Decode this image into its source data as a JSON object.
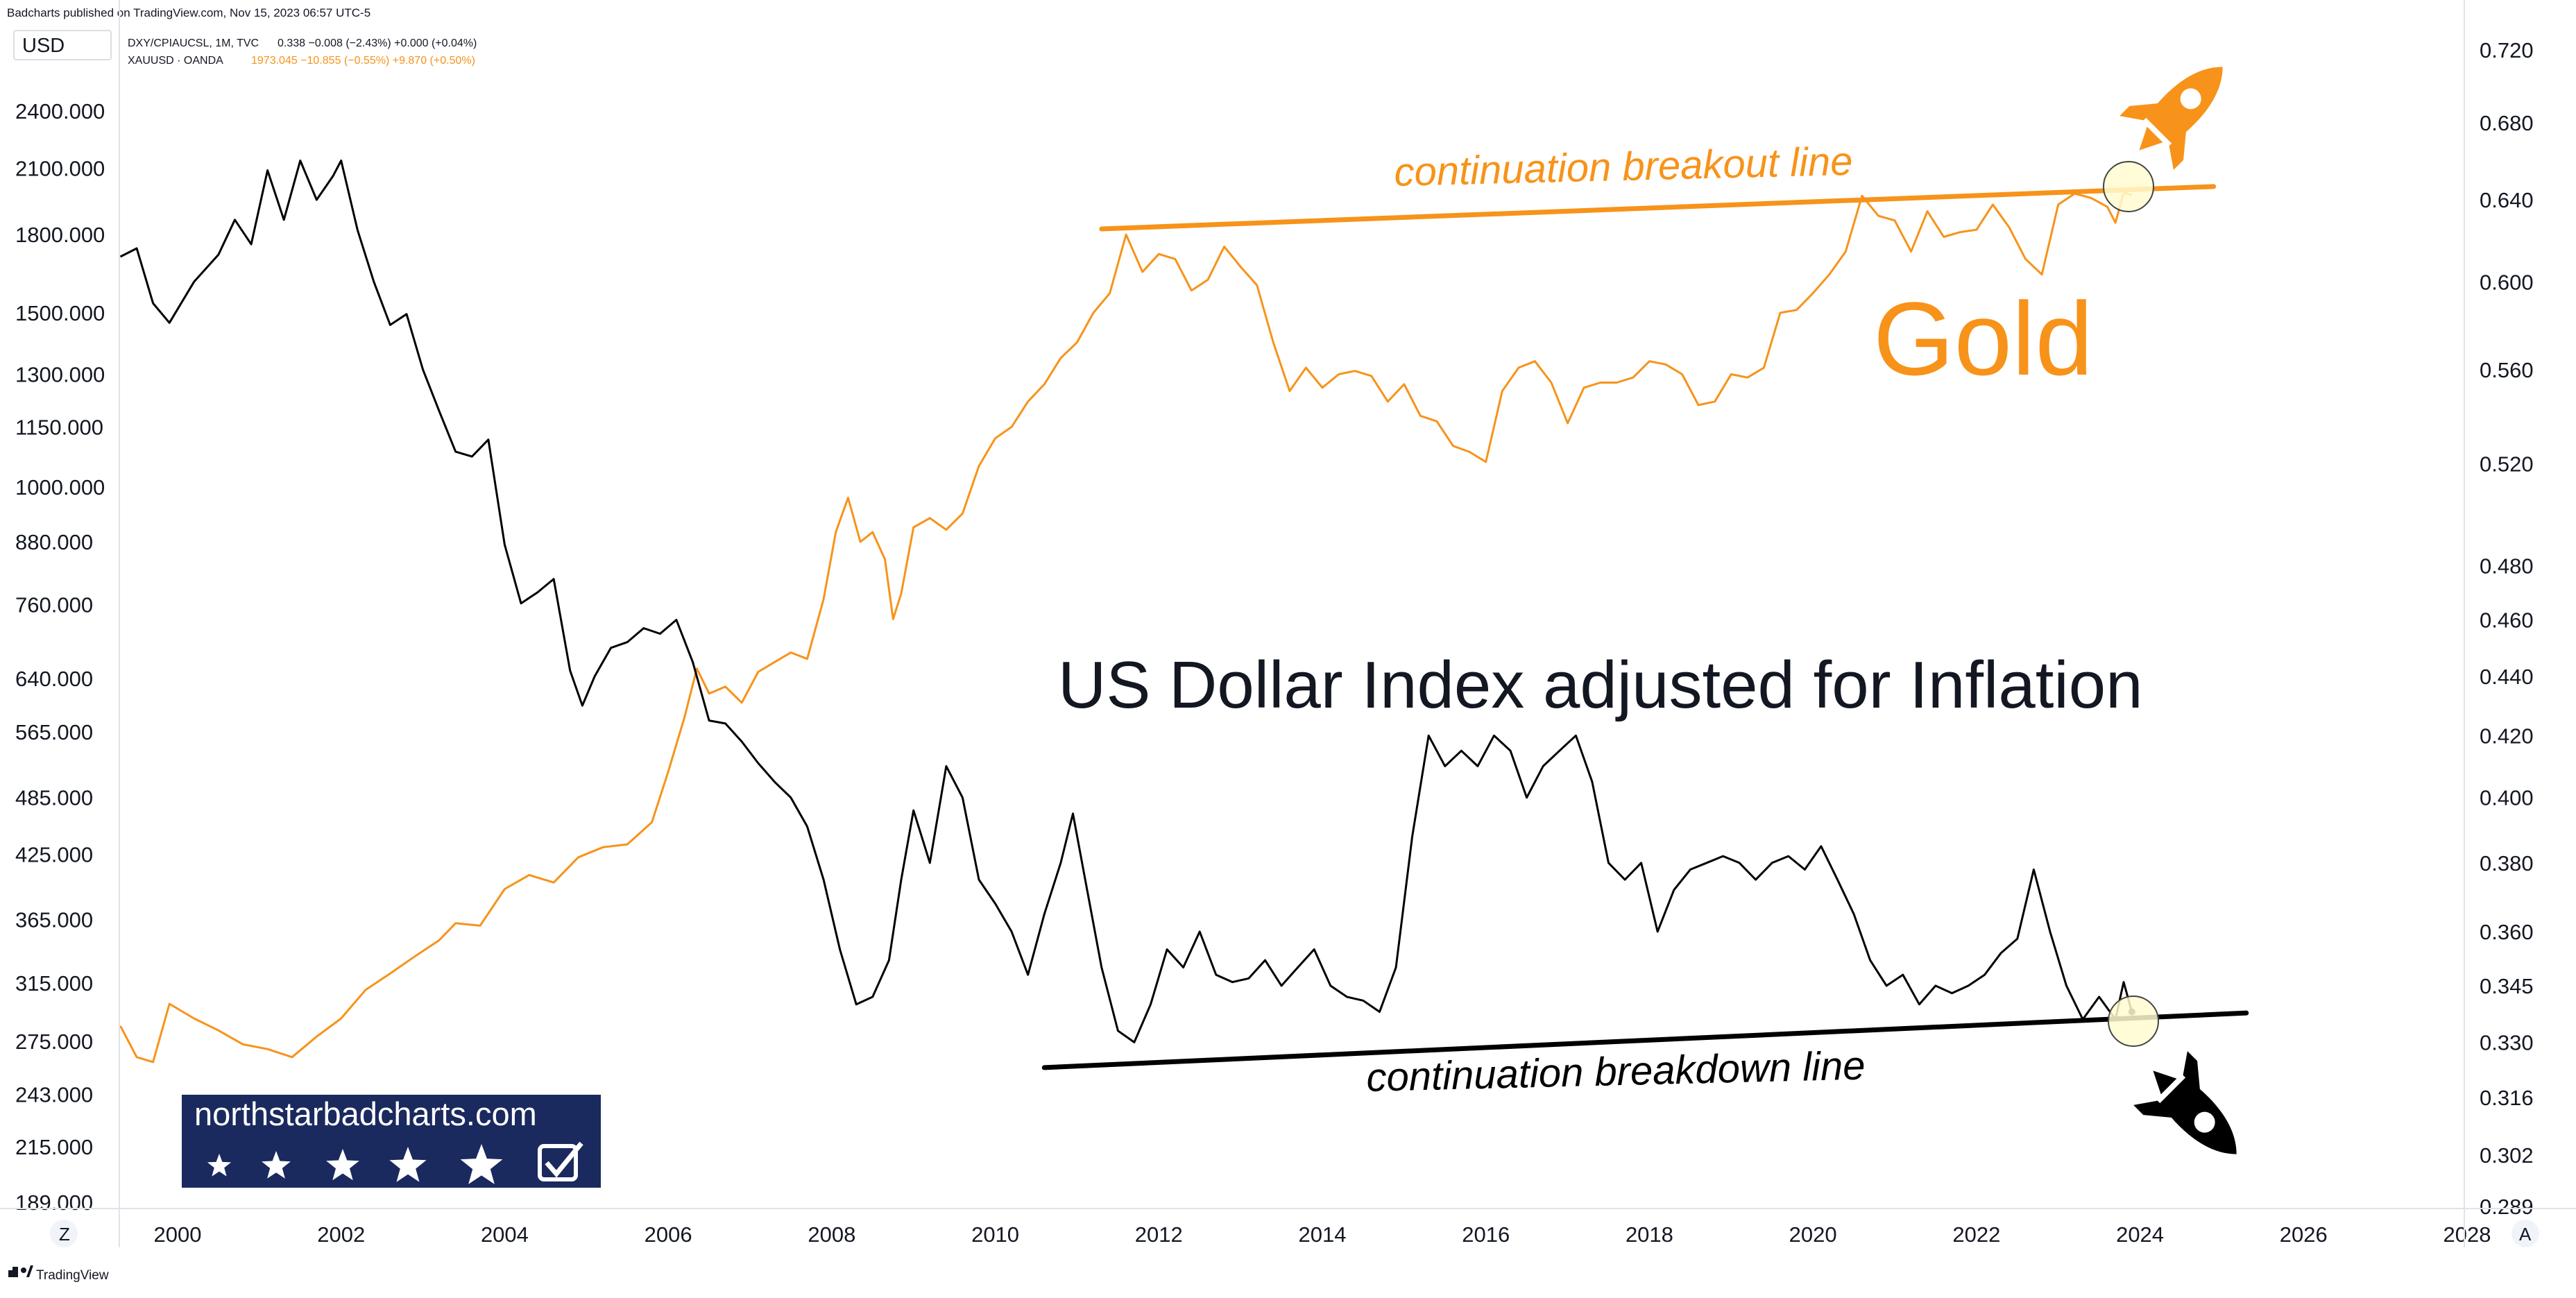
{
  "header": {
    "published": "Badcharts published on TradingView.com, Nov 15, 2023 06:57 UTC-5",
    "currency": "USD"
  },
  "legend": [
    {
      "symbol": "DXY/CPIAUCSL, 1M, TVC",
      "values": "0.338  −0.008 (−2.43%)  +0.000 (+0.04%)",
      "color": "#131722"
    },
    {
      "symbol": "XAUUSD · OANDA",
      "values": "1973.045  −10.855 (−0.55%)  +9.870 (+0.50%)",
      "color": "#f7931a"
    }
  ],
  "footer": {
    "brand": "TradingView",
    "zoom_button": "Z",
    "auto_button": "A"
  },
  "watermark": {
    "site": "northstarbadcharts.com",
    "star_count": 5
  },
  "colors": {
    "gold": "#f7931a",
    "dollar": "#000000",
    "watermark_bg": "#1a2a5e",
    "highlight": "#fffbd0"
  },
  "icons": [
    "rocket-up-icon",
    "rocket-down-icon",
    "checkbox-icon",
    "tradingview-logo-icon"
  ],
  "chart_data": {
    "type": "line",
    "title": "US Dollar Index adjusted for Inflation",
    "x_ticks": [
      "2000",
      "2002",
      "2004",
      "2006",
      "2008",
      "2010",
      "2012",
      "2014",
      "2016",
      "2018",
      "2020",
      "2022",
      "2024",
      "2026",
      "2028"
    ],
    "left_axis": {
      "scale": "log",
      "ticks": [
        "2400.000",
        "2100.000",
        "1800.000",
        "1500.000",
        "1300.000",
        "1150.000",
        "1000.000",
        "880.000",
        "760.000",
        "640.000",
        "565.000",
        "485.000",
        "425.000",
        "365.000",
        "315.000",
        "275.000",
        "243.000",
        "215.000",
        "189.000"
      ]
    },
    "right_axis": {
      "scale": "log",
      "ticks": [
        "0.720",
        "0.680",
        "0.640",
        "0.600",
        "0.560",
        "0.520",
        "0.480",
        "0.460",
        "0.440",
        "0.420",
        "0.400",
        "0.380",
        "0.360",
        "0.345",
        "0.330",
        "0.316",
        "0.302",
        "0.289"
      ]
    },
    "annotations": [
      {
        "text": "continuation breakout line",
        "color": "#f7931a"
      },
      {
        "text": "Gold",
        "color": "#f7931a"
      },
      {
        "text": "continuation breakdown line",
        "color": "#000000"
      }
    ],
    "trend_lines": [
      {
        "name": "continuation breakout line",
        "axis": "right",
        "color": "#f7931a",
        "start": [
          2011.3,
          0.6255
        ],
        "end": [
          2024.9,
          0.6467
        ]
      },
      {
        "name": "continuation breakdown line",
        "axis": "right",
        "color": "#000000",
        "start": [
          2010.6,
          0.3235
        ],
        "end": [
          2025.3,
          0.3377
        ]
      }
    ],
    "series": [
      {
        "axis": "left",
        "color": "#f7931a",
        "points": [
          [
            1999.3,
            285
          ],
          [
            1999.5,
            265
          ],
          [
            1999.7,
            262
          ],
          [
            1999.9,
            300
          ],
          [
            2000.2,
            290
          ],
          [
            2000.5,
            282
          ],
          [
            2000.8,
            273
          ],
          [
            2001.1,
            270
          ],
          [
            2001.4,
            265
          ],
          [
            2001.7,
            278
          ],
          [
            2002.0,
            290
          ],
          [
            2002.3,
            310
          ],
          [
            2002.6,
            322
          ],
          [
            2002.9,
            335
          ],
          [
            2003.2,
            348
          ],
          [
            2003.4,
            362
          ],
          [
            2003.7,
            360
          ],
          [
            2004.0,
            392
          ],
          [
            2004.3,
            405
          ],
          [
            2004.6,
            398
          ],
          [
            2004.9,
            422
          ],
          [
            2005.2,
            432
          ],
          [
            2005.5,
            435
          ],
          [
            2005.8,
            458
          ],
          [
            2006.0,
            515
          ],
          [
            2006.2,
            585
          ],
          [
            2006.35,
            655
          ],
          [
            2006.5,
            618
          ],
          [
            2006.7,
            628
          ],
          [
            2006.9,
            605
          ],
          [
            2007.1,
            650
          ],
          [
            2007.3,
            665
          ],
          [
            2007.5,
            680
          ],
          [
            2007.7,
            670
          ],
          [
            2007.9,
            770
          ],
          [
            2008.05,
            900
          ],
          [
            2008.2,
            975
          ],
          [
            2008.35,
            880
          ],
          [
            2008.5,
            900
          ],
          [
            2008.65,
            845
          ],
          [
            2008.75,
            735
          ],
          [
            2008.85,
            780
          ],
          [
            2009.0,
            910
          ],
          [
            2009.2,
            930
          ],
          [
            2009.4,
            905
          ],
          [
            2009.6,
            940
          ],
          [
            2009.8,
            1050
          ],
          [
            2010.0,
            1120
          ],
          [
            2010.2,
            1150
          ],
          [
            2010.4,
            1220
          ],
          [
            2010.6,
            1270
          ],
          [
            2010.8,
            1350
          ],
          [
            2011.0,
            1400
          ],
          [
            2011.2,
            1500
          ],
          [
            2011.4,
            1570
          ],
          [
            2011.6,
            1800
          ],
          [
            2011.8,
            1650
          ],
          [
            2012.0,
            1720
          ],
          [
            2012.2,
            1700
          ],
          [
            2012.4,
            1580
          ],
          [
            2012.6,
            1620
          ],
          [
            2012.8,
            1750
          ],
          [
            2013.0,
            1670
          ],
          [
            2013.2,
            1600
          ],
          [
            2013.4,
            1400
          ],
          [
            2013.6,
            1250
          ],
          [
            2013.8,
            1320
          ],
          [
            2014.0,
            1260
          ],
          [
            2014.2,
            1300
          ],
          [
            2014.4,
            1310
          ],
          [
            2014.6,
            1295
          ],
          [
            2014.8,
            1220
          ],
          [
            2015.0,
            1270
          ],
          [
            2015.2,
            1180
          ],
          [
            2015.4,
            1165
          ],
          [
            2015.6,
            1100
          ],
          [
            2015.8,
            1085
          ],
          [
            2016.0,
            1060
          ],
          [
            2016.2,
            1250
          ],
          [
            2016.4,
            1320
          ],
          [
            2016.6,
            1340
          ],
          [
            2016.8,
            1275
          ],
          [
            2017.0,
            1160
          ],
          [
            2017.2,
            1260
          ],
          [
            2017.4,
            1275
          ],
          [
            2017.6,
            1275
          ],
          [
            2017.8,
            1290
          ],
          [
            2018.0,
            1340
          ],
          [
            2018.2,
            1330
          ],
          [
            2018.4,
            1300
          ],
          [
            2018.6,
            1210
          ],
          [
            2018.8,
            1220
          ],
          [
            2019.0,
            1300
          ],
          [
            2019.2,
            1290
          ],
          [
            2019.4,
            1320
          ],
          [
            2019.6,
            1500
          ],
          [
            2019.8,
            1510
          ],
          [
            2020.0,
            1570
          ],
          [
            2020.2,
            1640
          ],
          [
            2020.4,
            1730
          ],
          [
            2020.6,
            1970
          ],
          [
            2020.8,
            1880
          ],
          [
            2021.0,
            1860
          ],
          [
            2021.2,
            1730
          ],
          [
            2021.4,
            1900
          ],
          [
            2021.6,
            1790
          ],
          [
            2021.8,
            1810
          ],
          [
            2022.0,
            1820
          ],
          [
            2022.2,
            1930
          ],
          [
            2022.4,
            1830
          ],
          [
            2022.6,
            1700
          ],
          [
            2022.8,
            1640
          ],
          [
            2023.0,
            1930
          ],
          [
            2023.2,
            1980
          ],
          [
            2023.4,
            1960
          ],
          [
            2023.6,
            1920
          ],
          [
            2023.7,
            1850
          ],
          [
            2023.8,
            1985
          ],
          [
            2023.9,
            1973
          ]
        ]
      },
      {
        "axis": "right",
        "color": "#000000",
        "points": [
          [
            1999.3,
            0.612
          ],
          [
            1999.5,
            0.616
          ],
          [
            1999.7,
            0.59
          ],
          [
            1999.9,
            0.581
          ],
          [
            2000.2,
            0.6
          ],
          [
            2000.5,
            0.613
          ],
          [
            2000.7,
            0.63
          ],
          [
            2000.9,
            0.618
          ],
          [
            2001.1,
            0.655
          ],
          [
            2001.3,
            0.63
          ],
          [
            2001.5,
            0.66
          ],
          [
            2001.7,
            0.64
          ],
          [
            2001.9,
            0.652
          ],
          [
            2002.0,
            0.66
          ],
          [
            2002.2,
            0.625
          ],
          [
            2002.4,
            0.6
          ],
          [
            2002.6,
            0.58
          ],
          [
            2002.8,
            0.585
          ],
          [
            2003.0,
            0.56
          ],
          [
            2003.2,
            0.542
          ],
          [
            2003.4,
            0.525
          ],
          [
            2003.6,
            0.523
          ],
          [
            2003.8,
            0.53
          ],
          [
            2004.0,
            0.488
          ],
          [
            2004.2,
            0.466
          ],
          [
            2004.4,
            0.47
          ],
          [
            2004.6,
            0.475
          ],
          [
            2004.8,
            0.442
          ],
          [
            2004.95,
            0.43
          ],
          [
            2005.1,
            0.44
          ],
          [
            2005.3,
            0.45
          ],
          [
            2005.5,
            0.452
          ],
          [
            2005.7,
            0.457
          ],
          [
            2005.9,
            0.455
          ],
          [
            2006.1,
            0.46
          ],
          [
            2006.3,
            0.445
          ],
          [
            2006.5,
            0.425
          ],
          [
            2006.7,
            0.424
          ],
          [
            2006.9,
            0.418
          ],
          [
            2007.1,
            0.411
          ],
          [
            2007.3,
            0.405
          ],
          [
            2007.5,
            0.4
          ],
          [
            2007.7,
            0.391
          ],
          [
            2007.9,
            0.375
          ],
          [
            2008.1,
            0.355
          ],
          [
            2008.3,
            0.34
          ],
          [
            2008.5,
            0.342
          ],
          [
            2008.7,
            0.352
          ],
          [
            2008.85,
            0.375
          ],
          [
            2009.0,
            0.396
          ],
          [
            2009.2,
            0.38
          ],
          [
            2009.4,
            0.41
          ],
          [
            2009.6,
            0.4
          ],
          [
            2009.8,
            0.375
          ],
          [
            2010.0,
            0.368
          ],
          [
            2010.2,
            0.36
          ],
          [
            2010.4,
            0.348
          ],
          [
            2010.6,
            0.365
          ],
          [
            2010.8,
            0.38
          ],
          [
            2010.95,
            0.395
          ],
          [
            2011.1,
            0.375
          ],
          [
            2011.3,
            0.35
          ],
          [
            2011.5,
            0.333
          ],
          [
            2011.7,
            0.33
          ],
          [
            2011.9,
            0.34
          ],
          [
            2012.1,
            0.355
          ],
          [
            2012.3,
            0.35
          ],
          [
            2012.5,
            0.36
          ],
          [
            2012.7,
            0.348
          ],
          [
            2012.9,
            0.346
          ],
          [
            2013.1,
            0.347
          ],
          [
            2013.3,
            0.352
          ],
          [
            2013.5,
            0.345
          ],
          [
            2013.7,
            0.35
          ],
          [
            2013.9,
            0.355
          ],
          [
            2014.1,
            0.345
          ],
          [
            2014.3,
            0.342
          ],
          [
            2014.5,
            0.341
          ],
          [
            2014.7,
            0.338
          ],
          [
            2014.9,
            0.35
          ],
          [
            2015.1,
            0.388
          ],
          [
            2015.3,
            0.42
          ],
          [
            2015.5,
            0.41
          ],
          [
            2015.7,
            0.415
          ],
          [
            2015.9,
            0.41
          ],
          [
            2016.1,
            0.42
          ],
          [
            2016.3,
            0.415
          ],
          [
            2016.5,
            0.4
          ],
          [
            2016.7,
            0.41
          ],
          [
            2016.9,
            0.415
          ],
          [
            2017.1,
            0.42
          ],
          [
            2017.3,
            0.405
          ],
          [
            2017.5,
            0.38
          ],
          [
            2017.7,
            0.375
          ],
          [
            2017.9,
            0.38
          ],
          [
            2018.1,
            0.36
          ],
          [
            2018.3,
            0.372
          ],
          [
            2018.5,
            0.378
          ],
          [
            2018.7,
            0.38
          ],
          [
            2018.9,
            0.382
          ],
          [
            2019.1,
            0.38
          ],
          [
            2019.3,
            0.375
          ],
          [
            2019.5,
            0.38
          ],
          [
            2019.7,
            0.382
          ],
          [
            2019.9,
            0.378
          ],
          [
            2020.1,
            0.385
          ],
          [
            2020.3,
            0.375
          ],
          [
            2020.5,
            0.365
          ],
          [
            2020.7,
            0.352
          ],
          [
            2020.9,
            0.345
          ],
          [
            2021.1,
            0.348
          ],
          [
            2021.3,
            0.34
          ],
          [
            2021.5,
            0.345
          ],
          [
            2021.7,
            0.343
          ],
          [
            2021.9,
            0.345
          ],
          [
            2022.1,
            0.348
          ],
          [
            2022.3,
            0.354
          ],
          [
            2022.5,
            0.358
          ],
          [
            2022.7,
            0.378
          ],
          [
            2022.9,
            0.36
          ],
          [
            2023.1,
            0.345
          ],
          [
            2023.3,
            0.336
          ],
          [
            2023.5,
            0.342
          ],
          [
            2023.7,
            0.336
          ],
          [
            2023.8,
            0.346
          ],
          [
            2023.9,
            0.338
          ]
        ]
      }
    ]
  }
}
